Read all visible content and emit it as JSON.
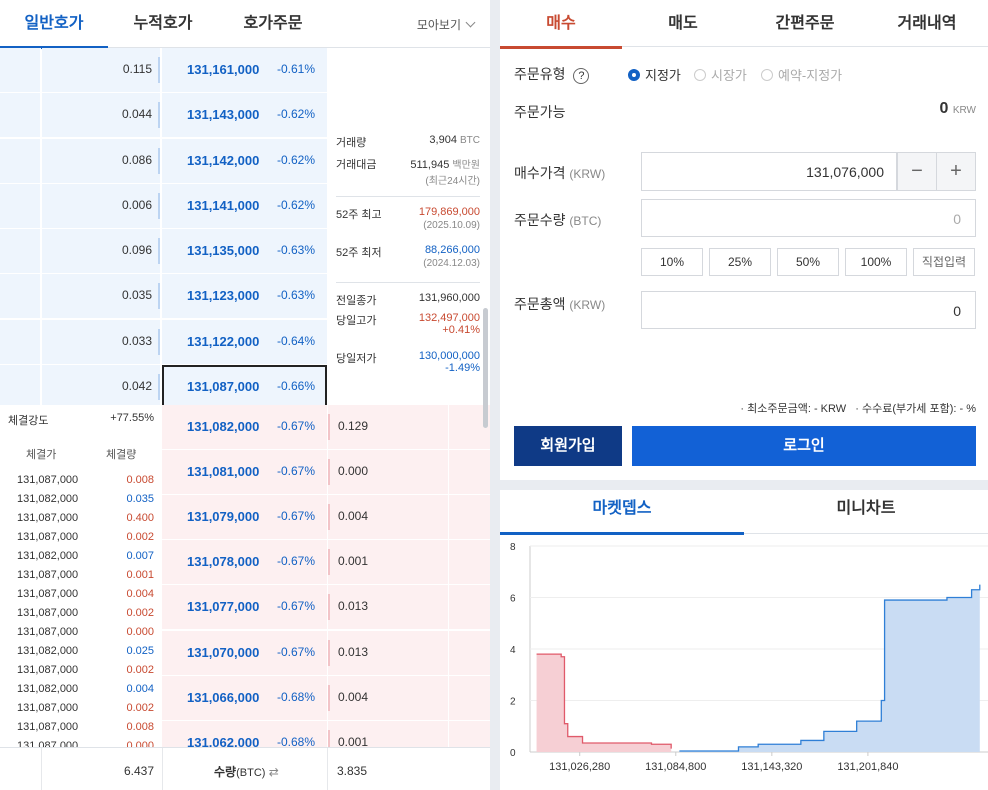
{
  "orderbook": {
    "tabs": [
      "일반호가",
      "누적호가",
      "호가주문"
    ],
    "moabogi": "모아보기",
    "asks": [
      {
        "qty": "0.115",
        "price": "131,161,000",
        "pct": "-0.61%"
      },
      {
        "qty": "0.044",
        "price": "131,143,000",
        "pct": "-0.62%"
      },
      {
        "qty": "0.086",
        "price": "131,142,000",
        "pct": "-0.62%"
      },
      {
        "qty": "0.006",
        "price": "131,141,000",
        "pct": "-0.62%"
      },
      {
        "qty": "0.096",
        "price": "131,135,000",
        "pct": "-0.63%"
      },
      {
        "qty": "0.035",
        "price": "131,123,000",
        "pct": "-0.63%"
      },
      {
        "qty": "0.033",
        "price": "131,122,000",
        "pct": "-0.64%"
      },
      {
        "qty": "0.042",
        "price": "131,087,000",
        "pct": "-0.66%"
      }
    ],
    "bids": [
      {
        "qty": "0.129",
        "price": "131,082,000",
        "pct": "-0.67%"
      },
      {
        "qty": "0.000",
        "price": "131,081,000",
        "pct": "-0.67%"
      },
      {
        "qty": "0.004",
        "price": "131,079,000",
        "pct": "-0.67%"
      },
      {
        "qty": "0.001",
        "price": "131,078,000",
        "pct": "-0.67%"
      },
      {
        "qty": "0.013",
        "price": "131,077,000",
        "pct": "-0.67%"
      },
      {
        "qty": "0.013",
        "price": "131,070,000",
        "pct": "-0.67%"
      },
      {
        "qty": "0.004",
        "price": "131,066,000",
        "pct": "-0.68%"
      },
      {
        "qty": "0.001",
        "price": "131,062,000",
        "pct": "-0.68%"
      }
    ],
    "info": {
      "volume_label": "거래량",
      "volume": "3,904",
      "volume_unit": "BTC",
      "amount_label": "거래대금",
      "amount": "511,945",
      "amount_unit": "백만원",
      "amount_sub": "(최근24시간)",
      "high52_label": "52주 최고",
      "high52": "179,869,000",
      "high52_date": "(2025.10.09)",
      "low52_label": "52주 최저",
      "low52": "88,266,000",
      "low52_date": "(2024.12.03)",
      "prev_label": "전일종가",
      "prev": "131,960,000",
      "dayhigh_label": "당일고가",
      "dayhigh": "132,497,000",
      "dayhigh_pct": "+0.41%",
      "daylow_label": "당일저가",
      "daylow": "130,000,000",
      "daylow_pct": "-1.49%"
    },
    "strength_label": "체결강도",
    "strength": "+77.55%",
    "trade_head_price": "체결가",
    "trade_head_qty": "체결량",
    "trades": [
      {
        "p": "131,087,000",
        "v": "0.008",
        "c": "red"
      },
      {
        "p": "131,082,000",
        "v": "0.035",
        "c": "blue"
      },
      {
        "p": "131,087,000",
        "v": "0.400",
        "c": "red"
      },
      {
        "p": "131,087,000",
        "v": "0.002",
        "c": "red"
      },
      {
        "p": "131,082,000",
        "v": "0.007",
        "c": "blue"
      },
      {
        "p": "131,087,000",
        "v": "0.001",
        "c": "red"
      },
      {
        "p": "131,087,000",
        "v": "0.004",
        "c": "red"
      },
      {
        "p": "131,087,000",
        "v": "0.002",
        "c": "red"
      },
      {
        "p": "131,087,000",
        "v": "0.000",
        "c": "red"
      },
      {
        "p": "131,082,000",
        "v": "0.025",
        "c": "blue"
      },
      {
        "p": "131,087,000",
        "v": "0.002",
        "c": "red"
      },
      {
        "p": "131,082,000",
        "v": "0.004",
        "c": "blue"
      },
      {
        "p": "131,087,000",
        "v": "0.002",
        "c": "red"
      },
      {
        "p": "131,087,000",
        "v": "0.008",
        "c": "red"
      },
      {
        "p": "131,087,000",
        "v": "0.000",
        "c": "red"
      }
    ],
    "footer": {
      "ask_total": "6.437",
      "label": "수량",
      "unit": "(BTC)",
      "bid_total": "3.835"
    }
  },
  "order": {
    "tabs": [
      "매수",
      "매도",
      "간편주문",
      "거래내역"
    ],
    "type_label": "주문유형",
    "types": [
      "지정가",
      "시장가",
      "예약-지정가"
    ],
    "available_label": "주문가능",
    "available": "0",
    "available_unit": "KRW",
    "price_label": "매수가격",
    "price_unit": "(KRW)",
    "price_value": "131,076,000",
    "qty_label": "주문수량",
    "qty_unit": "(BTC)",
    "qty_value": "0",
    "pct_buttons": [
      "10%",
      "25%",
      "50%",
      "100%",
      "직접입력"
    ],
    "total_label": "주문총액",
    "total_unit": "(KRW)",
    "total_value": "0",
    "note_min": "최소주문금액: - KRW",
    "note_fee": "수수료(부가세 포함): - %",
    "signup": "회원가입",
    "login": "로그인",
    "colors": {
      "buy": "#c84a31",
      "signup": "#0f3a86",
      "login": "#1261d6"
    }
  },
  "depth": {
    "tabs": [
      "마켓뎁스",
      "미니차트"
    ],
    "chart_data": {
      "type": "area",
      "ylim": [
        0,
        8
      ],
      "yticks": [
        "0",
        "2",
        "4",
        "6",
        "8"
      ],
      "xticks": [
        "131,026,280",
        "131,084,800",
        "131,143,320",
        "131,201,840"
      ],
      "series": [
        {
          "side": "bid",
          "color": "#e05a6a",
          "points": [
            [
              131000000,
              3.8
            ],
            [
              131015000,
              3.7
            ],
            [
              131017000,
              1.1
            ],
            [
              131019000,
              0.6
            ],
            [
              131028000,
              0.35
            ],
            [
              131070000,
              0.3
            ],
            [
              131082000,
              0.13
            ]
          ]
        },
        {
          "side": "ask",
          "color": "#2f7fd6",
          "points": [
            [
              131087000,
              0.04
            ],
            [
              131123000,
              0.2
            ],
            [
              131135000,
              0.3
            ],
            [
              131161000,
              0.45
            ],
            [
              131175000,
              0.8
            ],
            [
              131195000,
              1.2
            ],
            [
              131210000,
              2.0
            ],
            [
              131212000,
              5.9
            ],
            [
              131250000,
              6.0
            ],
            [
              131265000,
              6.3
            ],
            [
              131270000,
              6.5
            ]
          ]
        }
      ]
    }
  }
}
